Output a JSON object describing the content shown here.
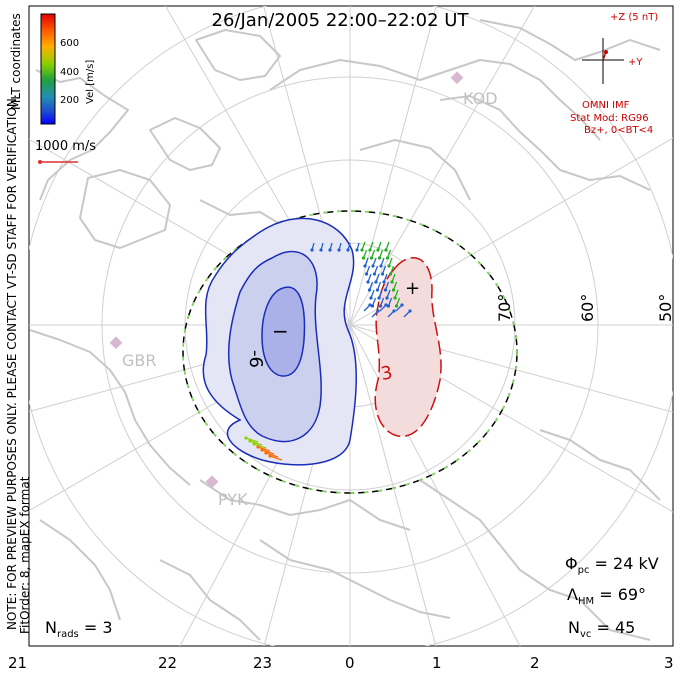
{
  "title": "26/Jan/2005 22:00–22:02 UT",
  "colorbar": {
    "tick_labels": [
      "600",
      "400",
      "200"
    ],
    "label": "Vel [m/s]",
    "colors": [
      "#e00000",
      "#ff6a00",
      "#ffb000",
      "#90d000",
      "#20b020",
      "#20a0a0",
      "#2060d0",
      "#0000ff"
    ]
  },
  "coord_label": "MLT coordinates",
  "side_note": "NOTE: FOR PREVIEW PURPOSES ONLY. PLEASE CONTACT VT-SD STAFF FOR VERIFICATION.",
  "fit_label": "FitOrder: 8, mapEX format",
  "vector_scale": "1000 m/s",
  "imf": {
    "z_label": "+Z (5 nT)",
    "y_label": "+Y",
    "source": "OMNI IMF",
    "model": "Stat Mod: RG96",
    "condition": "Bz+, 0<BT<4"
  },
  "stations": [
    "KOD",
    "GBR",
    "PYK"
  ],
  "lat_labels": [
    "70°",
    "60°",
    "50°"
  ],
  "mlt_labels": [
    "21",
    "22",
    "23",
    "0",
    "1",
    "2",
    "3"
  ],
  "contours": {
    "neg_label": "-6",
    "pos_label": "3",
    "min_marker": "−",
    "max_marker": "+"
  },
  "stats": {
    "phi_sym": "Φ",
    "phi_sub": "pc",
    "phi_val": " = 24 kV",
    "lam_sym": "Λ",
    "lam_sub": "HM",
    "lam_val": " = 69°",
    "nvc_sym": "N",
    "nvc_sub": "vc",
    "nvc_val": " = 45",
    "nrads_sym": "N",
    "nrads_sub": "rads",
    "nrads_val": " = 3"
  }
}
